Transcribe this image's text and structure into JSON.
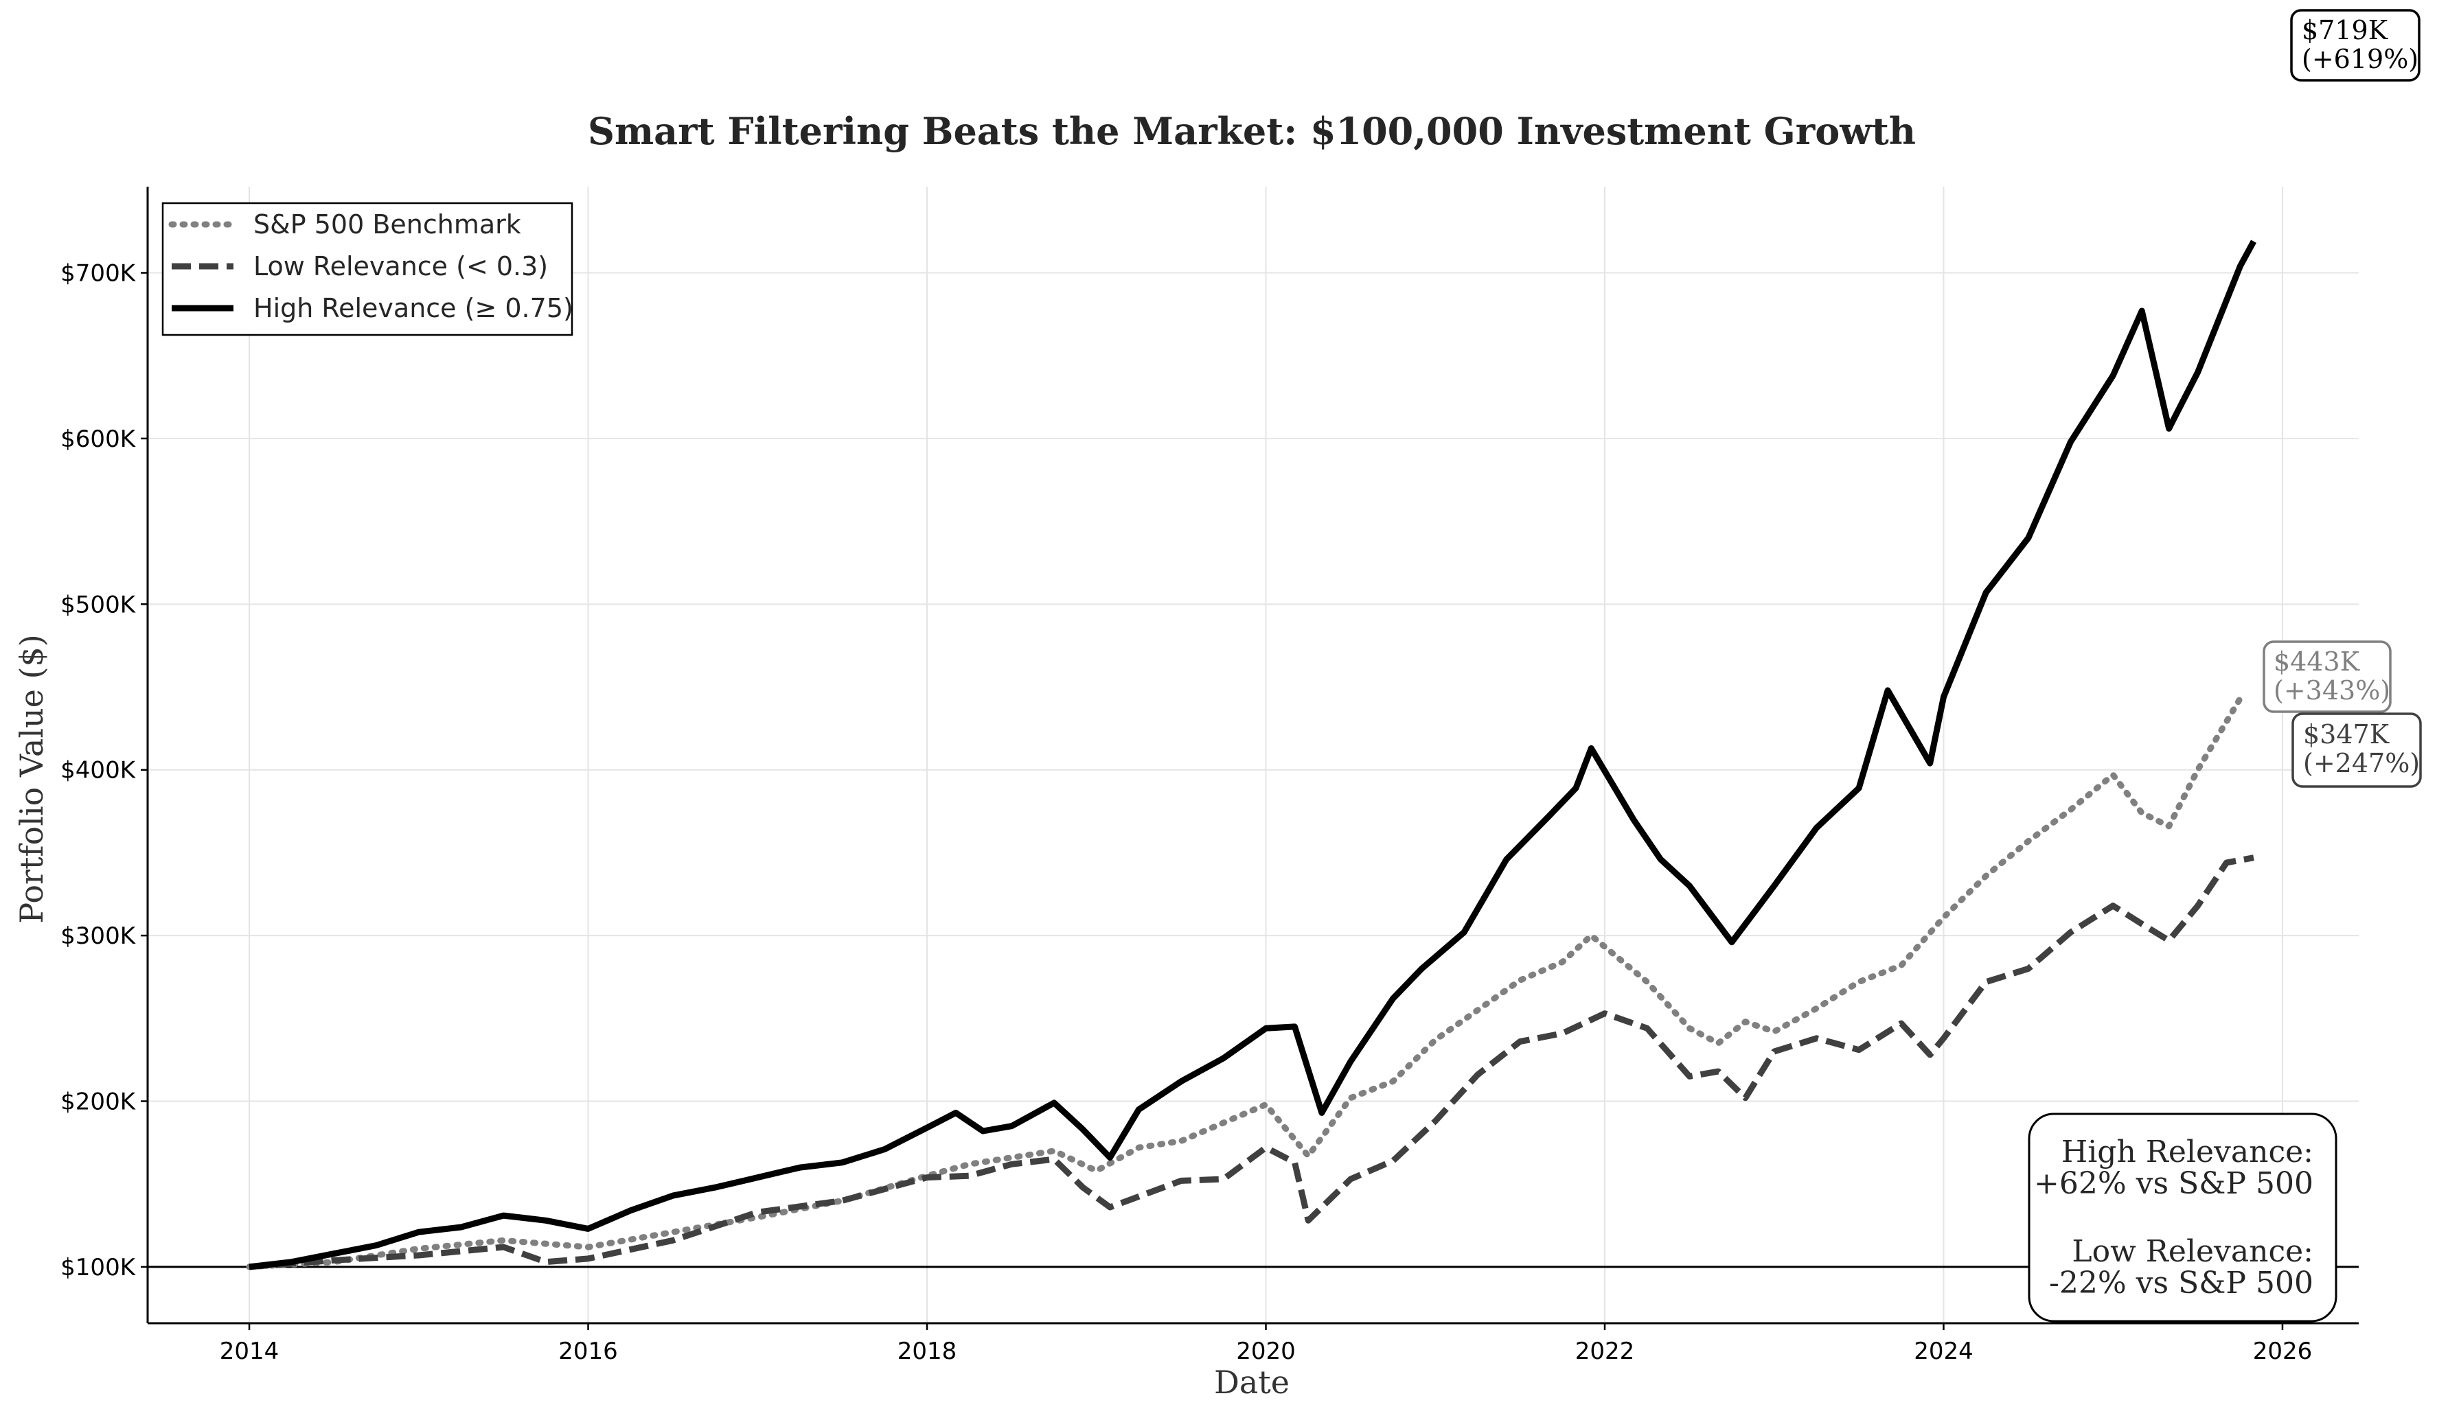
{
  "chart_data": {
    "type": "line",
    "title": "Smart Filtering Beats the Market: $100,000 Investment Growth",
    "xlabel": "Date",
    "ylabel": "Portfolio Value ($)",
    "xlim": [
      2013.4,
      2026.45
    ],
    "ylim": [
      66000,
      752000
    ],
    "x_ticks": [
      2014,
      2016,
      2018,
      2020,
      2022,
      2024,
      2026
    ],
    "x_tick_labels": [
      "2014",
      "2016",
      "2018",
      "2020",
      "2022",
      "2024",
      "2026"
    ],
    "y_ticks": [
      100000,
      200000,
      300000,
      400000,
      500000,
      600000,
      700000
    ],
    "y_tick_labels": [
      "$100K",
      "$200K",
      "$300K",
      "$400K",
      "$500K",
      "$600K",
      "$700K"
    ],
    "grid": true,
    "legend_position": "top-left",
    "reference_line": 100000,
    "series": [
      {
        "name": "S&P 500 Benchmark",
        "color": "#808080",
        "style": "dotted",
        "points": [
          [
            2014.0,
            100000
          ],
          [
            2014.5,
            103000
          ],
          [
            2015.0,
            111000
          ],
          [
            2015.5,
            116000
          ],
          [
            2016.0,
            112000
          ],
          [
            2016.5,
            121000
          ],
          [
            2017.0,
            130000
          ],
          [
            2017.5,
            140000
          ],
          [
            2018.0,
            155000
          ],
          [
            2018.25,
            162000
          ],
          [
            2018.5,
            166000
          ],
          [
            2018.75,
            170000
          ],
          [
            2019.0,
            158000
          ],
          [
            2019.25,
            172000
          ],
          [
            2019.5,
            176000
          ],
          [
            2019.75,
            187000
          ],
          [
            2020.0,
            198000
          ],
          [
            2020.25,
            167000
          ],
          [
            2020.5,
            202000
          ],
          [
            2020.75,
            212000
          ],
          [
            2021.0,
            237000
          ],
          [
            2021.25,
            255000
          ],
          [
            2021.5,
            273000
          ],
          [
            2021.75,
            284000
          ],
          [
            2021.92,
            300000
          ],
          [
            2022.25,
            272000
          ],
          [
            2022.5,
            244000
          ],
          [
            2022.67,
            235000
          ],
          [
            2022.83,
            248000
          ],
          [
            2023.0,
            242000
          ],
          [
            2023.25,
            256000
          ],
          [
            2023.5,
            272000
          ],
          [
            2023.75,
            282000
          ],
          [
            2024.0,
            311000
          ],
          [
            2024.25,
            336000
          ],
          [
            2024.5,
            357000
          ],
          [
            2024.75,
            376000
          ],
          [
            2025.0,
            397000
          ],
          [
            2025.17,
            374000
          ],
          [
            2025.33,
            366000
          ],
          [
            2025.5,
            400000
          ],
          [
            2025.75,
            443000
          ]
        ]
      },
      {
        "name": "Low Relevance (< 0.3)",
        "color": "#404040",
        "style": "dashed",
        "points": [
          [
            2014.0,
            100000
          ],
          [
            2014.5,
            104000
          ],
          [
            2015.0,
            107000
          ],
          [
            2015.5,
            112000
          ],
          [
            2015.75,
            103000
          ],
          [
            2016.0,
            105000
          ],
          [
            2016.5,
            116000
          ],
          [
            2017.0,
            133000
          ],
          [
            2017.5,
            140000
          ],
          [
            2018.0,
            154000
          ],
          [
            2018.25,
            155000
          ],
          [
            2018.5,
            162000
          ],
          [
            2018.75,
            165000
          ],
          [
            2018.92,
            148000
          ],
          [
            2019.08,
            136000
          ],
          [
            2019.5,
            152000
          ],
          [
            2019.75,
            153000
          ],
          [
            2020.0,
            172000
          ],
          [
            2020.17,
            163000
          ],
          [
            2020.25,
            128000
          ],
          [
            2020.5,
            153000
          ],
          [
            2020.75,
            164000
          ],
          [
            2021.0,
            188000
          ],
          [
            2021.25,
            216000
          ],
          [
            2021.5,
            236000
          ],
          [
            2021.75,
            241000
          ],
          [
            2022.0,
            253000
          ],
          [
            2022.25,
            244000
          ],
          [
            2022.5,
            215000
          ],
          [
            2022.67,
            218000
          ],
          [
            2022.83,
            202000
          ],
          [
            2023.0,
            230000
          ],
          [
            2023.25,
            238000
          ],
          [
            2023.5,
            231000
          ],
          [
            2023.75,
            247000
          ],
          [
            2023.92,
            228000
          ],
          [
            2024.0,
            238000
          ],
          [
            2024.25,
            272000
          ],
          [
            2024.5,
            280000
          ],
          [
            2024.75,
            302000
          ],
          [
            2025.0,
            318000
          ],
          [
            2025.17,
            307000
          ],
          [
            2025.33,
            297000
          ],
          [
            2025.5,
            318000
          ],
          [
            2025.67,
            344000
          ],
          [
            2025.83,
            347000
          ]
        ]
      },
      {
        "name": "High Relevance (≥ 0.75)",
        "color": "#000000",
        "style": "solid",
        "points": [
          [
            2014.0,
            100000
          ],
          [
            2014.25,
            103000
          ],
          [
            2014.5,
            108000
          ],
          [
            2014.75,
            113000
          ],
          [
            2015.0,
            121000
          ],
          [
            2015.25,
            124000
          ],
          [
            2015.5,
            131000
          ],
          [
            2015.75,
            128000
          ],
          [
            2016.0,
            123000
          ],
          [
            2016.25,
            134000
          ],
          [
            2016.5,
            143000
          ],
          [
            2016.75,
            148000
          ],
          [
            2017.0,
            154000
          ],
          [
            2017.25,
            160000
          ],
          [
            2017.5,
            163000
          ],
          [
            2017.75,
            171000
          ],
          [
            2018.0,
            184000
          ],
          [
            2018.17,
            193000
          ],
          [
            2018.33,
            182000
          ],
          [
            2018.5,
            185000
          ],
          [
            2018.75,
            199000
          ],
          [
            2018.92,
            183000
          ],
          [
            2019.08,
            166000
          ],
          [
            2019.25,
            195000
          ],
          [
            2019.5,
            212000
          ],
          [
            2019.75,
            226000
          ],
          [
            2020.0,
            244000
          ],
          [
            2020.17,
            245000
          ],
          [
            2020.33,
            193000
          ],
          [
            2020.5,
            224000
          ],
          [
            2020.75,
            262000
          ],
          [
            2020.92,
            280000
          ],
          [
            2021.17,
            302000
          ],
          [
            2021.42,
            346000
          ],
          [
            2021.67,
            372000
          ],
          [
            2021.83,
            389000
          ],
          [
            2021.92,
            413000
          ],
          [
            2022.17,
            370000
          ],
          [
            2022.33,
            346000
          ],
          [
            2022.5,
            330000
          ],
          [
            2022.75,
            296000
          ],
          [
            2023.0,
            330000
          ],
          [
            2023.25,
            365000
          ],
          [
            2023.5,
            389000
          ],
          [
            2023.67,
            448000
          ],
          [
            2023.92,
            404000
          ],
          [
            2024.0,
            444000
          ],
          [
            2024.25,
            507000
          ],
          [
            2024.5,
            540000
          ],
          [
            2024.75,
            598000
          ],
          [
            2025.0,
            638000
          ],
          [
            2025.17,
            677000
          ],
          [
            2025.33,
            606000
          ],
          [
            2025.5,
            640000
          ],
          [
            2025.75,
            704000
          ],
          [
            2025.83,
            719000
          ]
        ]
      }
    ],
    "end_labels": [
      {
        "series": "High Relevance (≥ 0.75)",
        "line1": "$719K",
        "line2": "(+619%)"
      },
      {
        "series": "S&P 500 Benchmark",
        "line1": "$443K",
        "line2": "(+343%)"
      },
      {
        "series": "Low Relevance (< 0.3)",
        "line1": "$347K",
        "line2": "(+247%)"
      }
    ],
    "summary_box": {
      "high_title": "High Relevance:",
      "high_value": "+62% vs S&P 500",
      "low_title": "Low Relevance:",
      "low_value": "-22% vs S&P 500"
    }
  }
}
